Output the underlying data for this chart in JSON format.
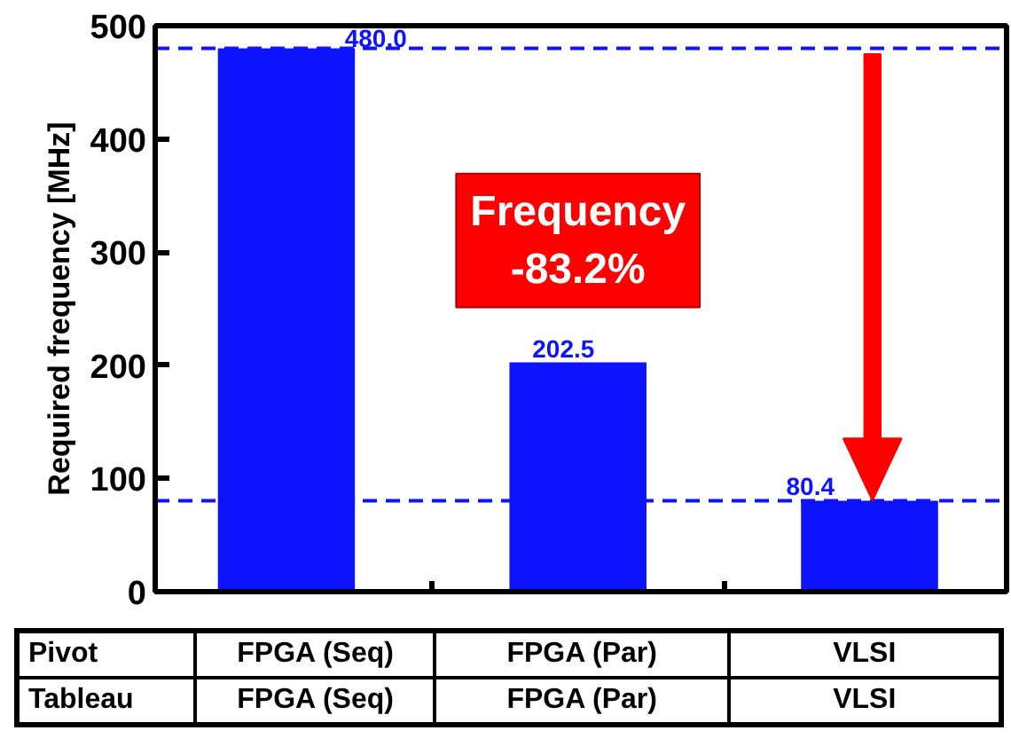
{
  "chart_data": {
    "type": "bar",
    "ylabel": "Required frequency [MHz]",
    "categories": [
      "FPGA (Seq)",
      "FPGA (Par)",
      "VLSI"
    ],
    "values": [
      480.0,
      202.5,
      80.4
    ],
    "color": "#0d12ff",
    "ylim": [
      0,
      500
    ],
    "yticks": [
      0,
      100,
      200,
      300,
      400,
      500
    ],
    "value_labels": [
      "480.0",
      "202.5",
      "80.4"
    ],
    "grid": false,
    "ref_lines": [
      {
        "axis": "y",
        "value": 480.0,
        "color": "#0d12ff",
        "line_style": "dashed"
      },
      {
        "axis": "y",
        "value": 80.4,
        "color": "#0d12ff",
        "line_style": "dashed"
      }
    ],
    "annotations": [
      "Pivot",
      "Tableau",
      "Frequency\n-83.2%"
    ]
  }
}
